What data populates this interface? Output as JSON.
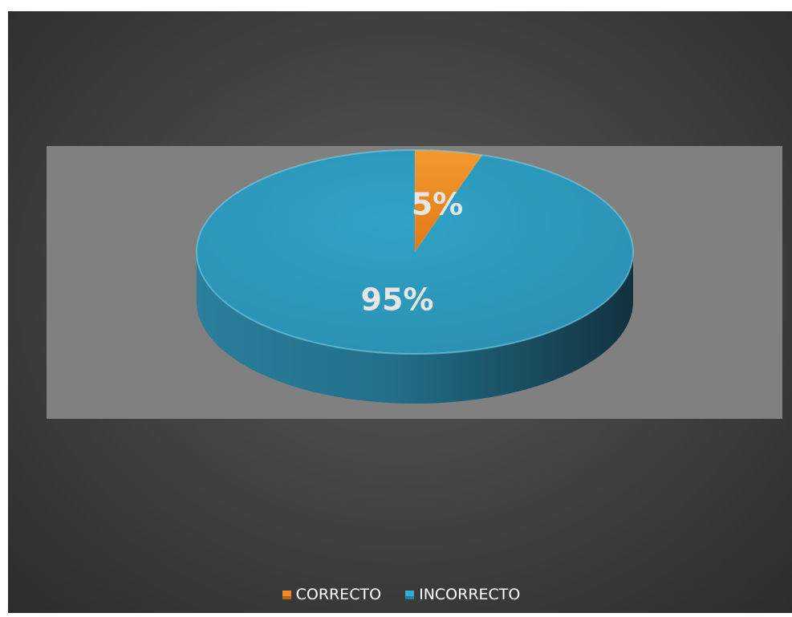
{
  "chart_data": {
    "type": "pie",
    "style": "3d",
    "title": "",
    "categories": [
      "CORRECTO",
      "INCORRECTO"
    ],
    "values": [
      5,
      95
    ],
    "data_labels": [
      "5%",
      "95%"
    ],
    "colors": [
      "#f08a24",
      "#35aed4"
    ],
    "legend": "bottom-center"
  }
}
